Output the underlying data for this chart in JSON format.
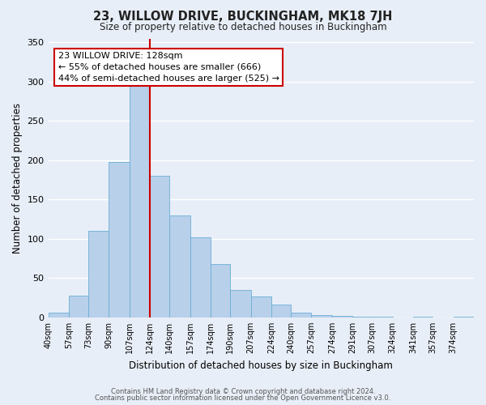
{
  "title": "23, WILLOW DRIVE, BUCKINGHAM, MK18 7JH",
  "subtitle": "Size of property relative to detached houses in Buckingham",
  "xlabel": "Distribution of detached houses by size in Buckingham",
  "ylabel": "Number of detached properties",
  "footer_line1": "Contains HM Land Registry data © Crown copyright and database right 2024.",
  "footer_line2": "Contains public sector information licensed under the Open Government Licence v3.0.",
  "bin_labels": [
    "40sqm",
    "57sqm",
    "73sqm",
    "90sqm",
    "107sqm",
    "124sqm",
    "140sqm",
    "157sqm",
    "174sqm",
    "190sqm",
    "207sqm",
    "224sqm",
    "240sqm",
    "257sqm",
    "274sqm",
    "291sqm",
    "307sqm",
    "324sqm",
    "341sqm",
    "357sqm",
    "374sqm"
  ],
  "bar_values": [
    6,
    28,
    110,
    198,
    295,
    180,
    130,
    102,
    68,
    35,
    27,
    16,
    6,
    3,
    2,
    1,
    1,
    0,
    1,
    0,
    1
  ],
  "bar_color": "#b8d0ea",
  "bar_edge_color": "#6aaed6",
  "vline_x_index": 5,
  "vline_color": "#cc0000",
  "ylim": [
    0,
    355
  ],
  "yticks": [
    0,
    50,
    100,
    150,
    200,
    250,
    300,
    350
  ],
  "annotation_text": "23 WILLOW DRIVE: 128sqm\n← 55% of detached houses are smaller (666)\n44% of semi-detached houses are larger (525) →",
  "annotation_box_edgecolor": "#cc0000",
  "annotation_box_facecolor": "#ffffff",
  "bg_color": "#e8eef7",
  "plot_bg_color": "#e8eef7",
  "grid_color": "#ffffff",
  "bin_edges": [
    40,
    57,
    73,
    90,
    107,
    124,
    140,
    157,
    174,
    190,
    207,
    224,
    240,
    257,
    274,
    291,
    307,
    324,
    341,
    357,
    374,
    391
  ]
}
